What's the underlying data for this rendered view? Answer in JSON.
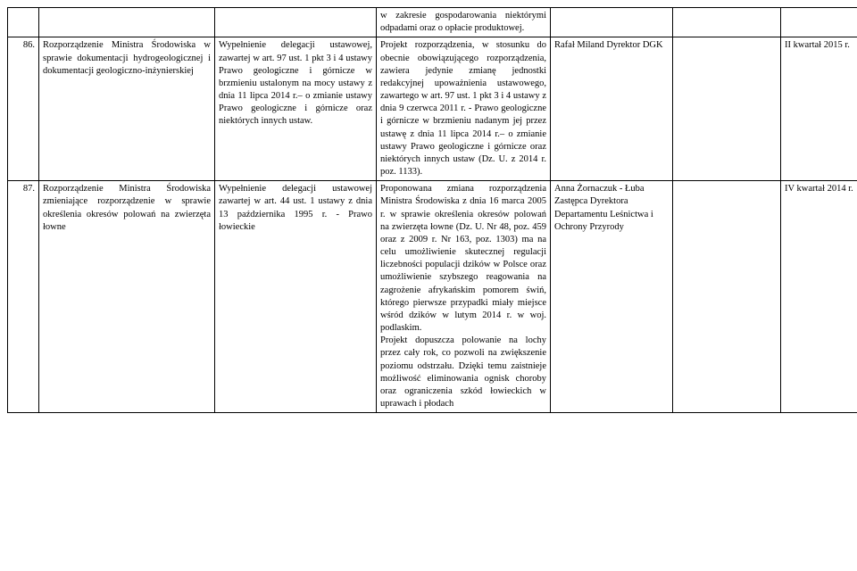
{
  "rows": {
    "upper": {
      "desc": "w zakresie gospodarowania niektórymi odpadami oraz o opłacie produktowej."
    },
    "r86": {
      "num": "86.",
      "title": "Rozporządzenie Ministra Środowiska w sprawie dokumentacji hydrogeologicznej i dokumentacji geologiczno-inżynierskiej",
      "delegation": "Wypełnienie delegacji ustawowej, zawartej w art. 97 ust. 1 pkt 3 i 4 ustawy Prawo geologiczne i górnicze w brzmieniu ustalonym na mocy ustawy z dnia 11 lipca 2014 r.– o zmianie ustawy Prawo geologiczne i górnicze oraz niektórych innych ustaw.",
      "desc": "Projekt rozporządzenia, w stosunku do obecnie obowiązującego rozporządzenia, zawiera jedynie zmianę jednostki redakcyjnej upoważnienia ustawowego, zawartego w art. 97 ust. 1 pkt 3 i 4 ustawy z dnia 9 czerwca 2011 r. - Prawo geologiczne i górnicze w brzmieniu nadanym jej przez ustawę z dnia 11 lipca 2014 r.– o zmianie ustawy Prawo geologiczne i górnicze oraz niektórych innych ustaw (Dz. U. z 2014 r. poz. 1133).",
      "person": "Rafał Miland Dyrektor DGK",
      "quarter": "II kwartał 2015 r."
    },
    "r87": {
      "num": "87.",
      "title": "Rozporządzenie Ministra Środowiska zmieniające rozporządzenie w sprawie określenia okresów polowań na zwierzęta łowne",
      "delegation": "Wypełnienie delegacji ustawowej zawartej w art. 44 ust. 1 ustawy z dnia 13 października 1995 r. - Prawo łowieckie",
      "desc": "Proponowana zmiana rozporządzenia Ministra Środowiska z dnia 16 marca 2005 r. w sprawie określenia okresów polowań na zwierzęta łowne (Dz. U. Nr 48, poz. 459 oraz z 2009 r. Nr 163, poz. 1303) ma na celu umożliwienie skutecznej regulacji liczebności populacji dzików w Polsce oraz umożliwienie szybszego reagowania na zagrożenie afrykańskim pomorem świń, którego pierwsze przypadki miały miejsce wśród dzików w lutym 2014 r. w woj. podlaskim.\nProjekt dopuszcza polowanie na lochy przez cały rok, co pozwoli na zwiększenie poziomu odstrzału. Dzięki temu zaistnieje możliwość eliminowania ognisk choroby oraz ograniczenia szkód łowieckich w uprawach i płodach",
      "person": "Anna Żornaczuk - Łuba\nZastępca Dyrektora Departamentu Leśnictwa i Ochrony Przyrody",
      "quarter": "IV kwartał 2014 r."
    }
  }
}
